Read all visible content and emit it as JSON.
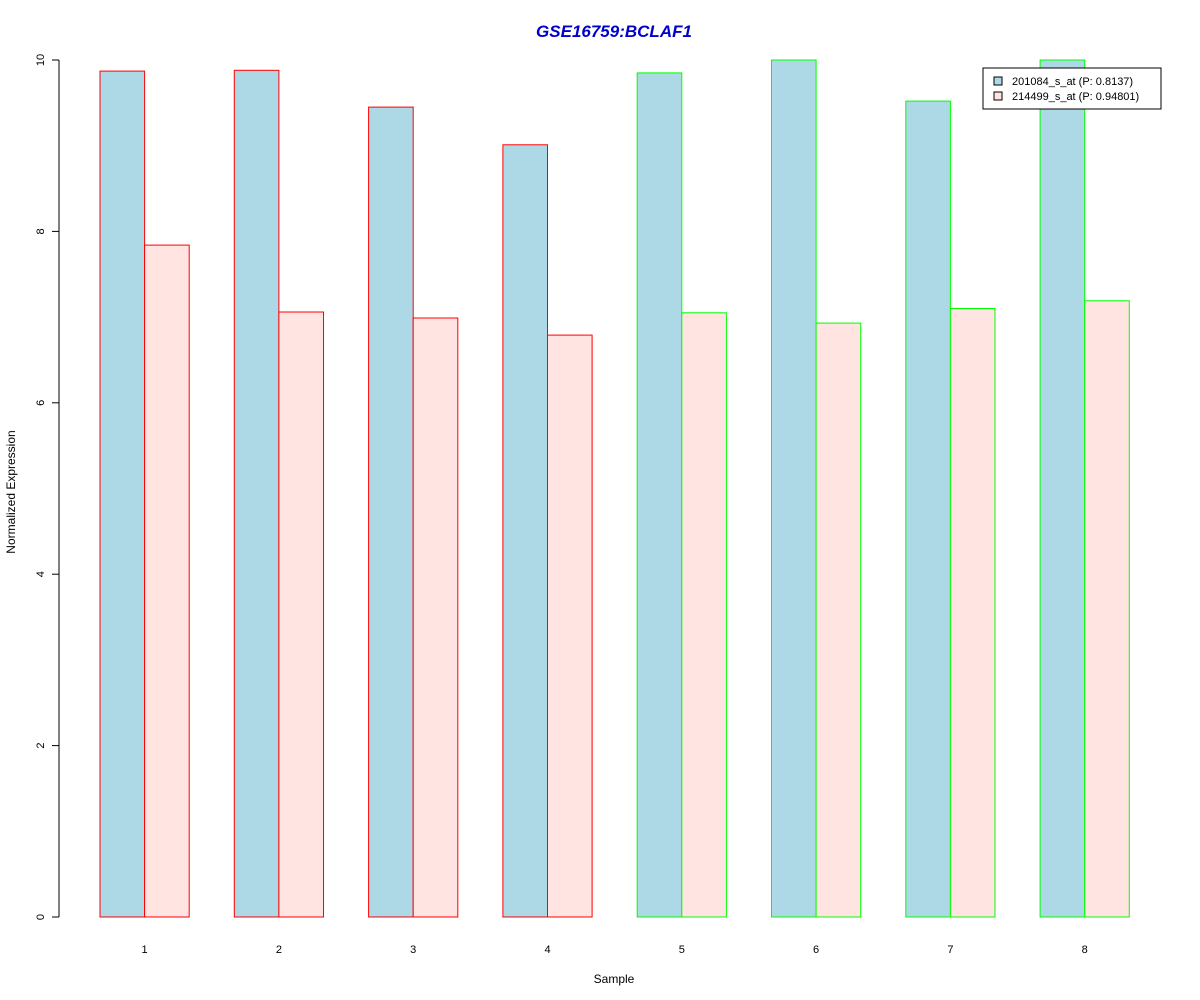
{
  "chart_data": {
    "type": "bar",
    "title": "GSE16759:BCLAF1",
    "xlabel": "Sample",
    "ylabel": "Normalized Expression",
    "categories": [
      "1",
      "2",
      "3",
      "4",
      "5",
      "6",
      "7",
      "8"
    ],
    "ylim": [
      0,
      10
    ],
    "yticks": [
      "0",
      "2",
      "4",
      "6",
      "8",
      "10"
    ],
    "grid": false,
    "legend_position": "top-right",
    "series": [
      {
        "name": "201084_s_at (P: 0.8137)",
        "fill": "#add8e6",
        "values": [
          9.87,
          9.88,
          9.45,
          9.01,
          9.85,
          10.0,
          9.52,
          10.0
        ]
      },
      {
        "name": "214499_s_at (P: 0.94801)",
        "fill": "#ffe4e1",
        "values": [
          7.84,
          7.06,
          6.99,
          6.79,
          7.05,
          6.93,
          7.1,
          7.19
        ]
      }
    ],
    "group_border_colors": [
      "#ff0000",
      "#ff0000",
      "#ff0000",
      "#ff0000",
      "#00ff00",
      "#00ff00",
      "#00ff00",
      "#00ff00"
    ],
    "title_color": "#0000cd"
  }
}
